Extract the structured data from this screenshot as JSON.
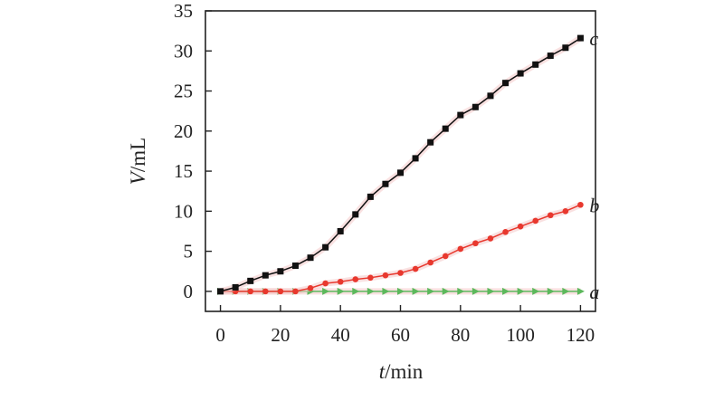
{
  "chart_data": {
    "type": "line",
    "xlabel": "t/min",
    "ylabel": "V/mL",
    "xlabel_parts": {
      "var": "t",
      "unit": "/min"
    },
    "ylabel_parts": {
      "var": "V",
      "unit": "/mL"
    },
    "xlim": [
      -5,
      125
    ],
    "ylim": [
      -2.5,
      35
    ],
    "x_ticks": [
      0,
      20,
      40,
      60,
      80,
      100,
      120
    ],
    "y_ticks": [
      0,
      5,
      10,
      15,
      20,
      25,
      30,
      35
    ],
    "x": [
      0,
      5,
      10,
      15,
      20,
      25,
      30,
      35,
      40,
      45,
      50,
      55,
      60,
      65,
      70,
      75,
      80,
      85,
      90,
      95,
      100,
      105,
      110,
      115,
      120
    ],
    "series": [
      {
        "name": "a",
        "color": "#5cb85c",
        "marker": "triangle-right",
        "values": [
          0,
          0,
          0,
          0,
          0,
          0,
          0,
          0,
          0,
          0,
          0,
          0,
          0,
          0,
          0,
          0,
          0,
          0,
          0,
          0,
          0,
          0,
          0,
          0,
          0
        ]
      },
      {
        "name": "b",
        "color": "#e8382e",
        "marker": "circle",
        "values": [
          0,
          0,
          0,
          0,
          0,
          0,
          0.4,
          1.0,
          1.2,
          1.5,
          1.7,
          2.0,
          2.3,
          2.8,
          3.6,
          4.4,
          5.3,
          6.0,
          6.6,
          7.4,
          8.1,
          8.8,
          9.5,
          10.0,
          10.8
        ]
      },
      {
        "name": "c",
        "color": "#111111",
        "marker": "square",
        "values": [
          0,
          0.5,
          1.3,
          2.0,
          2.5,
          3.2,
          4.2,
          5.5,
          7.5,
          9.6,
          11.8,
          13.4,
          14.8,
          16.6,
          18.6,
          20.3,
          22.0,
          23.0,
          24.4,
          26.0,
          27.2,
          28.3,
          29.4,
          30.4,
          31.6
        ]
      }
    ]
  }
}
